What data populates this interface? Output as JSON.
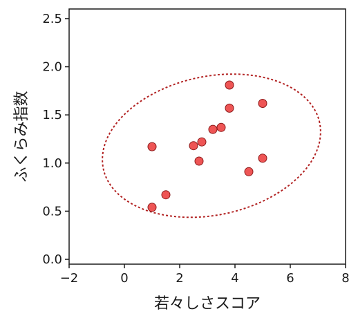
{
  "chart_data": {
    "type": "scatter",
    "title": "",
    "xlabel": "若々しさスコア",
    "ylabel": "ふくらみ指数",
    "xlim": [
      -2,
      8
    ],
    "ylim": [
      -0.05,
      2.6
    ],
    "x_ticks": [
      -2,
      0,
      2,
      4,
      6,
      8
    ],
    "y_ticks": [
      0.0,
      0.5,
      1.0,
      1.5,
      2.0,
      2.5
    ],
    "x_tick_labels": [
      "−2",
      "0",
      "2",
      "4",
      "6",
      "8"
    ],
    "y_tick_labels": [
      "0.0",
      "0.5",
      "1.0",
      "1.5",
      "2.0",
      "2.5"
    ],
    "grid": false,
    "legend": "none",
    "series": [
      {
        "color": "#ee5555",
        "edgecolor": "#8b1a1a",
        "points": [
          {
            "x": 1.0,
            "y": 1.17
          },
          {
            "x": 1.0,
            "y": 0.54
          },
          {
            "x": 1.5,
            "y": 0.67
          },
          {
            "x": 2.5,
            "y": 1.18
          },
          {
            "x": 2.7,
            "y": 1.02
          },
          {
            "x": 2.8,
            "y": 1.22
          },
          {
            "x": 3.2,
            "y": 1.35
          },
          {
            "x": 3.5,
            "y": 1.37
          },
          {
            "x": 3.8,
            "y": 1.81
          },
          {
            "x": 3.8,
            "y": 1.57
          },
          {
            "x": 4.5,
            "y": 0.91
          },
          {
            "x": 5.0,
            "y": 1.62
          },
          {
            "x": 5.0,
            "y": 1.05
          }
        ]
      }
    ],
    "confidence_ellipse": {
      "style": "dotted",
      "color": "#b22222",
      "center": [
        3.15,
        1.18
      ],
      "semi_major": 4.0,
      "semi_minor": 0.72,
      "angle_deg": 12.0
    }
  }
}
